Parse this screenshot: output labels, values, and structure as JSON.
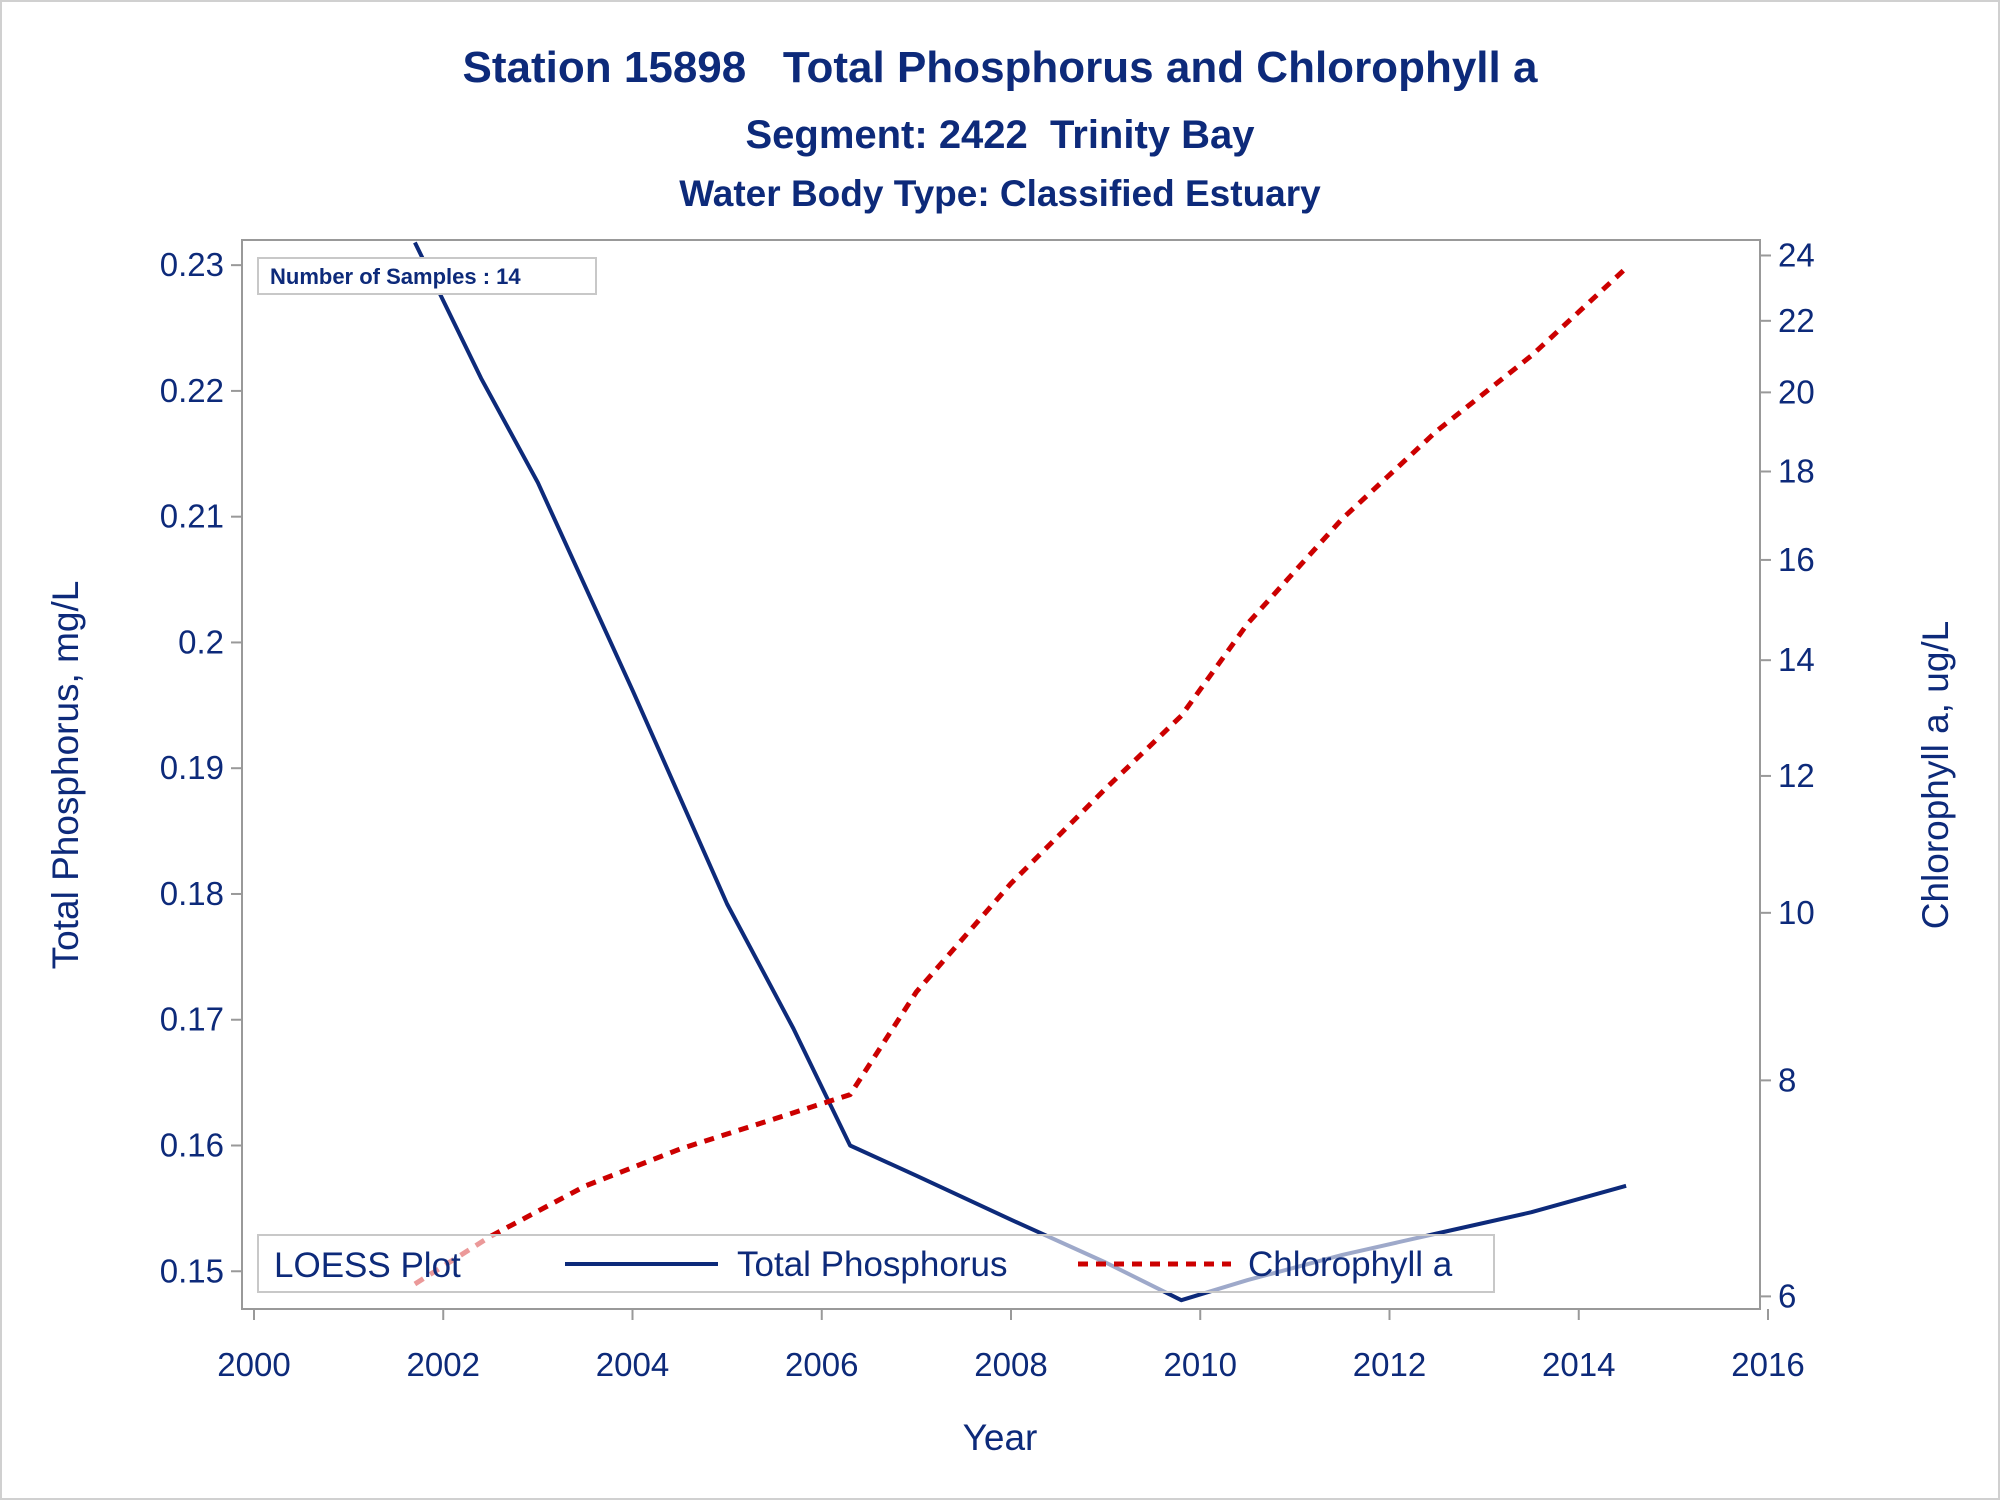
{
  "titles": {
    "line1": "Station 15898   Total Phosphorus and Chlorophyll a",
    "line2": "Segment: 2422  Trinity Bay",
    "line3": "Water Body Type: Classified Estuary"
  },
  "inset_label": "Number of Samples : 14",
  "legend": {
    "title": "LOESS Plot",
    "items": [
      "Total Phosphorus",
      "Chlorophyll a"
    ]
  },
  "colors": {
    "text": "#0d2a7a",
    "phosphorus": "#0d2a7a",
    "chlorophyll": "#cc0000",
    "frame": "#999999"
  },
  "chart_data": {
    "type": "line",
    "xlabel": "Year",
    "ylabel": "Total Phosphorus, mg/L",
    "y2label": "Chlorophyll a, ug/L",
    "xlim": [
      2000,
      2016
    ],
    "ylim": [
      0.147,
      0.232
    ],
    "y2lim": [
      5.9,
      24.5
    ],
    "x_ticks": [
      "2000",
      "2002",
      "2004",
      "2006",
      "2008",
      "2010",
      "2012",
      "2014",
      "2016"
    ],
    "y_ticks": [
      "0.15",
      "0.16",
      "0.17",
      "0.18",
      "0.19",
      "0.2",
      "0.21",
      "0.22",
      "0.23"
    ],
    "y2_ticks": [
      "6",
      "8",
      "10",
      "12",
      "14",
      "16",
      "18",
      "20",
      "22",
      "24"
    ],
    "y2_scale": "log",
    "series": [
      {
        "name": "Total Phosphorus",
        "axis": "left",
        "style": "solid",
        "x": [
          2001.7,
          2002.4,
          2003.0,
          2004.0,
          2005.0,
          2005.7,
          2006.3,
          2007.0,
          2008.0,
          2009.0,
          2009.8,
          2010.5,
          2011.5,
          2012.5,
          2013.5,
          2014.5
        ],
        "y": [
          0.2318,
          0.221,
          0.2127,
          0.1962,
          0.1792,
          0.1693,
          0.16,
          0.1576,
          0.1541,
          0.1507,
          0.1477,
          0.1493,
          0.1513,
          0.153,
          0.1547,
          0.1568
        ]
      },
      {
        "name": "Chlorophyll a",
        "axis": "right",
        "style": "dashed",
        "x": [
          2001.7,
          2002.5,
          2003.5,
          2004.5,
          2005.5,
          2006.3,
          2007.0,
          2008.0,
          2009.0,
          2009.8,
          2010.5,
          2011.5,
          2012.5,
          2013.5,
          2014.5
        ],
        "y": [
          6.1,
          6.5,
          6.95,
          7.3,
          7.6,
          7.85,
          9.0,
          10.4,
          11.8,
          13.0,
          14.7,
          16.9,
          19.0,
          21.0,
          23.6
        ]
      }
    ]
  }
}
